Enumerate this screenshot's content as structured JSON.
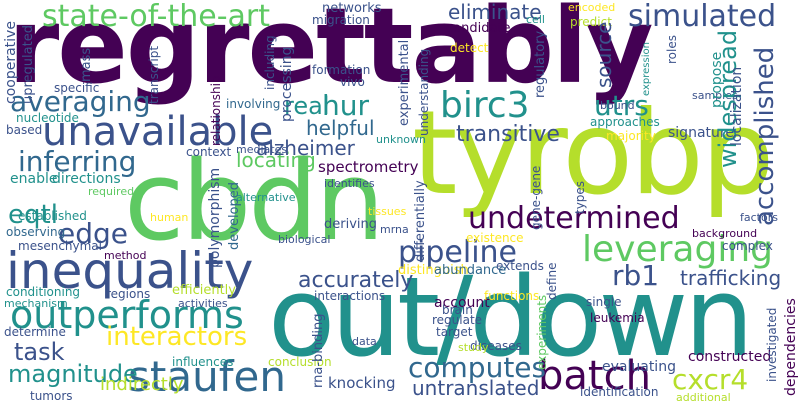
{
  "palette": {
    "purple": "#440154",
    "indigo": "#3b528b",
    "teal": "#21918c",
    "green": "#5ec962",
    "lime": "#b5de2b",
    "yellow": "#fde725",
    "blue": "#31688e",
    "darkpurple": "#482878"
  },
  "words": {
    "regrettably": "regrettably",
    "tyrobp": "tyrobp",
    "cbdn": "cbdn",
    "out_down": "out/down",
    "inequality": "inequality",
    "unavailable": "unavailable",
    "outperforms": "outperforms",
    "staufen": "staufen",
    "batch": "batch",
    "leveraging": "leveraging",
    "pipeline": "pipeline",
    "birc3": "birc3",
    "state_of_the_art": "state-of-the-art",
    "averaging": "averaging",
    "inferring": "inferring",
    "simulated": "simulated",
    "undetermined": "undetermined",
    "accomplished": "accomplished",
    "widespread": "widespread",
    "interactors": "interactors",
    "computes": "computes",
    "cxcr4": "cxcr4",
    "magnitude": "magnitude",
    "task": "task",
    "edge": "edge",
    "eqtl": "eqtl",
    "rb1": "rb1",
    "utrs": "utrs",
    "hur": "hur",
    "real": "real",
    "helpful": "helpful",
    "transitive": "transitive",
    "locating": "locating",
    "alzheimer": "alzheimer",
    "spectrometry": "spectrometry",
    "accurately": "accurately",
    "trafficking": "trafficking",
    "untranslated": "untranslated",
    "indirectly": "indirectly",
    "knocking": "knocking",
    "eliminate": "eliminate",
    "candidate": "candidate",
    "networks": "networks",
    "migration": "migration",
    "source": "source",
    "signature": "signature",
    "distinguish": "distinguish",
    "extends": "extends",
    "abundance": "abundance",
    "account": "account",
    "leukemia": "leukemia",
    "constructed": "constructed",
    "dependencies": "dependencies",
    "investigated": "investigated",
    "cooperative": "cooperative",
    "upregulated": "upregulated",
    "mass": "mass",
    "transcript": "transcript",
    "specific": "specific",
    "nucleotide": "nucleotide",
    "based": "based",
    "enable": "enable",
    "directions": "directions",
    "required": "required",
    "established": "established",
    "observing": "observing",
    "mesenchymal": "mesenchymal",
    "method": "method",
    "conditioning": "conditioning",
    "mechanism": "mechanism",
    "determine": "determine",
    "tumors": "tumors",
    "regions": "regions",
    "efficiently": "efficiently",
    "activities": "activities",
    "influences": "influences",
    "conclusion": "conclusion",
    "rna_binding": "rna-binding",
    "data": "data",
    "brain": "brain",
    "target": "target",
    "regulate": "regulate",
    "functions": "functions",
    "interactions": "interactions",
    "diseases": "diseases",
    "study": "study",
    "evaluating": "evaluating",
    "experiments": "experiments",
    "identification": "identification",
    "additional": "additional",
    "relationship": "relationship",
    "including": "including",
    "processing": "processing",
    "formation": "formation",
    "vivo": "vivo",
    "experimental": "experimental",
    "involving": "involving",
    "understanding": "understanding",
    "regulatory": "regulatory",
    "detect": "detect",
    "predict": "predict",
    "encoded": "encoded",
    "cell": "cell",
    "expression": "expression",
    "samples": "samples",
    "propose": "propose",
    "roles": "roles",
    "bound": "bound",
    "approaches": "approaches",
    "majority": "majority",
    "localization": "localization",
    "unknown": "unknown",
    "context": "context",
    "mediates": "mediates",
    "alternative": "alternative",
    "identifies": "identifies",
    "human": "human",
    "polymorphism": "polymorphism",
    "developed": "developed",
    "biological": "biological",
    "deriving": "deriving",
    "tissues": "tissues",
    "mrna": "mrna",
    "differentially": "differentially",
    "existence": "existence",
    "gene_gene": "gene-gene",
    "types": "types",
    "define": "define",
    "single": "single",
    "background": "background",
    "factors": "factors",
    "complex": "complex"
  }
}
